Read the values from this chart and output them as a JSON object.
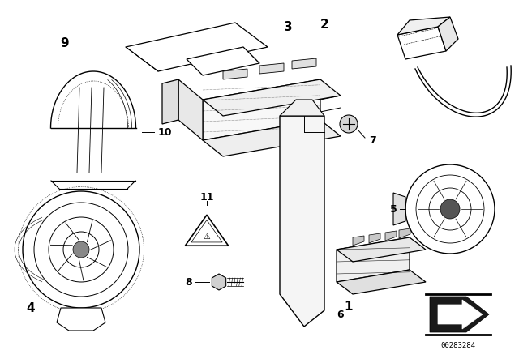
{
  "background_color": "#ffffff",
  "line_color": "#000000",
  "diagram_id": "00283284",
  "fig_width": 6.4,
  "fig_height": 4.48,
  "dpi": 100
}
